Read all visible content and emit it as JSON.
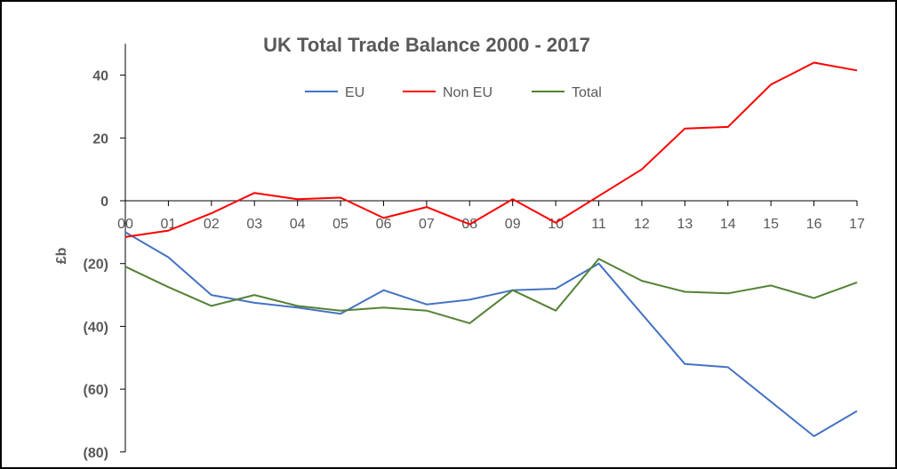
{
  "chart_data": {
    "type": "line",
    "title": "UK Total Trade Balance 2000 - 2017",
    "xlabel": "",
    "ylabel": "£b",
    "x": [
      "00",
      "01",
      "02",
      "03",
      "04",
      "05",
      "06",
      "07",
      "08",
      "09",
      "10",
      "11",
      "12",
      "13",
      "14",
      "15",
      "16",
      "17"
    ],
    "ylim": [
      -80,
      50
    ],
    "yticks": [
      40,
      20,
      0,
      -20,
      -40,
      -60,
      -80
    ],
    "ytick_labels": [
      "40",
      "20",
      "0",
      "(20)",
      "(40)",
      "(60)",
      "(80)"
    ],
    "grid": false,
    "legend_position": "top",
    "series": [
      {
        "name": "EU",
        "color": "#4472C4",
        "values": [
          -10,
          -18,
          -30,
          -32.5,
          -34,
          -36,
          -28.5,
          -33,
          -31.5,
          -28.5,
          -28,
          -20,
          -36,
          -52,
          -53,
          -64,
          -75,
          -67
        ]
      },
      {
        "name": "Non EU",
        "color": "#FF0000",
        "values": [
          -11.5,
          -9.5,
          -4,
          2.5,
          0.5,
          1,
          -5.5,
          -2,
          -7.5,
          0.5,
          -7,
          1.5,
          10,
          23,
          23.5,
          37,
          44,
          41.5
        ]
      },
      {
        "name": "Total",
        "color": "#548235",
        "values": [
          -21,
          -27.5,
          -33.5,
          -30,
          -33.5,
          -35,
          -34,
          -35,
          -39,
          -28.5,
          -35,
          -18.5,
          -25.5,
          -29,
          -29.5,
          -27,
          -31,
          -26
        ]
      }
    ]
  }
}
